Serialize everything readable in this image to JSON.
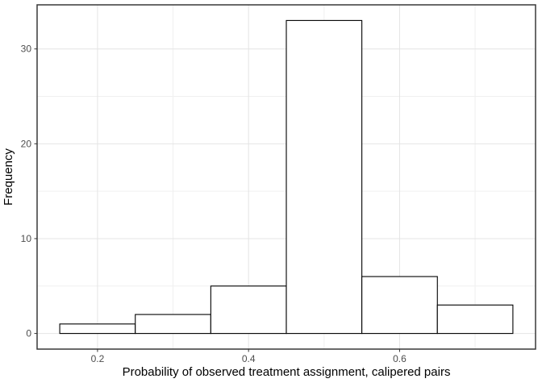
{
  "figure": {
    "background": "#FFFFFF"
  },
  "chart_data": {
    "type": "bar",
    "subtype": "histogram",
    "xlabel": "Probability of observed treatment assignment, calipered pairs",
    "ylabel": "Frequency",
    "bin_edges": [
      0.15,
      0.25,
      0.35,
      0.45,
      0.55,
      0.65,
      0.75
    ],
    "counts": [
      1,
      2,
      5,
      33,
      6,
      3
    ],
    "xlim": [
      0.12,
      0.78
    ],
    "ylim": [
      -1.65,
      34.65
    ],
    "x_ticks": [
      {
        "value": 0.2,
        "label": "0.2"
      },
      {
        "value": 0.4,
        "label": "0.4"
      },
      {
        "value": 0.6,
        "label": "0.6"
      }
    ],
    "y_ticks": [
      {
        "value": 0,
        "label": "0"
      },
      {
        "value": 10,
        "label": "10"
      },
      {
        "value": 20,
        "label": "20"
      },
      {
        "value": 30,
        "label": "30"
      }
    ],
    "x_minor_gridlines": [
      0.3,
      0.5,
      0.7
    ],
    "y_minor_gridlines": [
      5,
      15,
      25
    ],
    "grid": true,
    "legend_position": "none",
    "style": {
      "bar_fill": "#FFFFFF",
      "bar_stroke": "#000000",
      "panel_border": "#383838",
      "grid_major": "#E4E4E4",
      "grid_minor": "#F0F0F0",
      "tick_color": "#333333",
      "tick_label_color": "#4D4D4D",
      "axis_title_color": "#000000"
    }
  }
}
